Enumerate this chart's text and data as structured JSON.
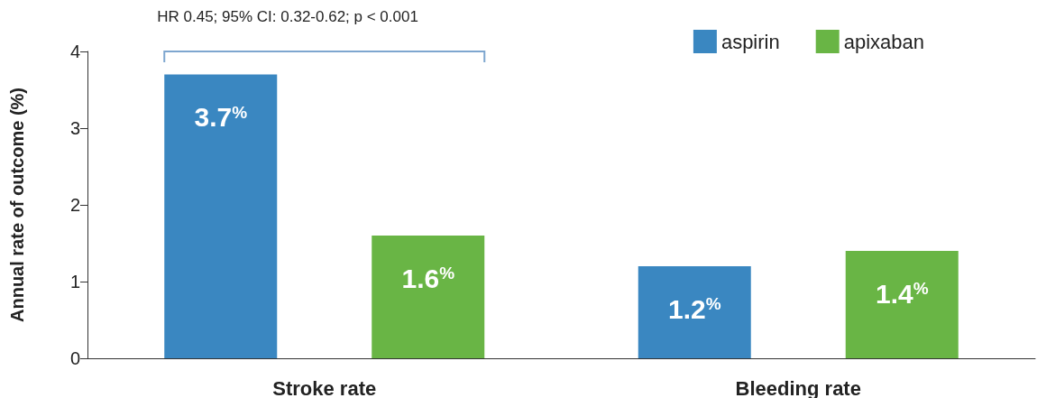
{
  "chart_data": {
    "type": "bar",
    "ylabel": "Annual rate of outcome (%)",
    "categories": [
      "Stroke rate",
      "Bleeding rate"
    ],
    "series": [
      {
        "name": "aspirin",
        "color": "#3a87c1",
        "values": [
          3.7,
          1.2
        ],
        "value_labels": [
          "3.7%",
          "1.2%"
        ]
      },
      {
        "name": "apixaban",
        "color": "#69b545",
        "values": [
          1.6,
          1.4
        ],
        "value_labels": [
          "1.6%",
          "1.4%"
        ]
      }
    ],
    "ylim": [
      0,
      4
    ],
    "yticks": [
      0,
      1,
      2,
      3,
      4
    ],
    "grid": false,
    "legend": "top right",
    "annotations": [
      "HR 0.45; 95% CI: 0.32-0.62; p < 0.001"
    ]
  }
}
